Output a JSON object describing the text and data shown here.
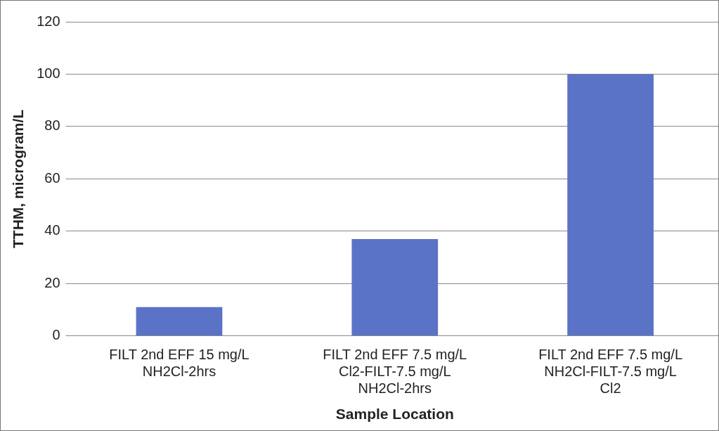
{
  "chart_data": {
    "type": "bar",
    "xlabel": "Sample Location",
    "ylabel": "TTHM, microgram/L",
    "categories": [
      "FILT 2nd EFF 15 mg/L\nNH2Cl-2hrs",
      "FILT 2nd EFF 7.5 mg/L\nCl2-FILT-7.5 mg/L\nNH2Cl-2hrs",
      "FILT 2nd EFF 7.5 mg/L\nNH2Cl-FILT-7.5 mg/L\nCl2"
    ],
    "values": [
      11,
      37,
      100
    ],
    "color": "#5b73c6",
    "ylim": [
      0,
      120
    ],
    "yticks": [
      0,
      20,
      40,
      60,
      80,
      100,
      120
    ],
    "grid": "y"
  }
}
